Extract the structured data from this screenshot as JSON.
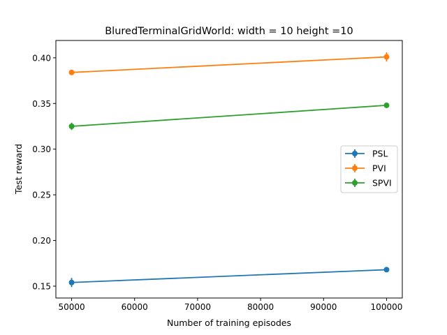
{
  "chart_data": {
    "type": "line",
    "title": "BluredTerminalGridWorld: width = 10 height =10",
    "xlabel": "Number of training episodes",
    "ylabel": "Test reward",
    "xlim": [
      47500,
      102500
    ],
    "ylim": [
      0.137,
      0.419
    ],
    "x_ticks": [
      50000,
      60000,
      70000,
      80000,
      90000,
      100000
    ],
    "x_tick_labels": [
      "50000",
      "60000",
      "70000",
      "80000",
      "90000",
      "100000"
    ],
    "y_ticks": [
      0.15,
      0.2,
      0.25,
      0.3,
      0.35,
      0.4
    ],
    "y_tick_labels": [
      "0.15",
      "0.20",
      "0.25",
      "0.30",
      "0.35",
      "0.40"
    ],
    "grid": false,
    "legend_position": "center-right",
    "x": [
      50000,
      100000
    ],
    "series": [
      {
        "name": "PSL",
        "color": "#1f77b4",
        "values": [
          0.154,
          0.168
        ],
        "errors": [
          0.005,
          0.002
        ]
      },
      {
        "name": "PVI",
        "color": "#ff7f0e",
        "values": [
          0.384,
          0.401
        ],
        "errors": [
          0.001,
          0.005
        ]
      },
      {
        "name": "SPVI",
        "color": "#2ca02c",
        "values": [
          0.325,
          0.348
        ],
        "errors": [
          0.004,
          0.002
        ]
      }
    ]
  }
}
